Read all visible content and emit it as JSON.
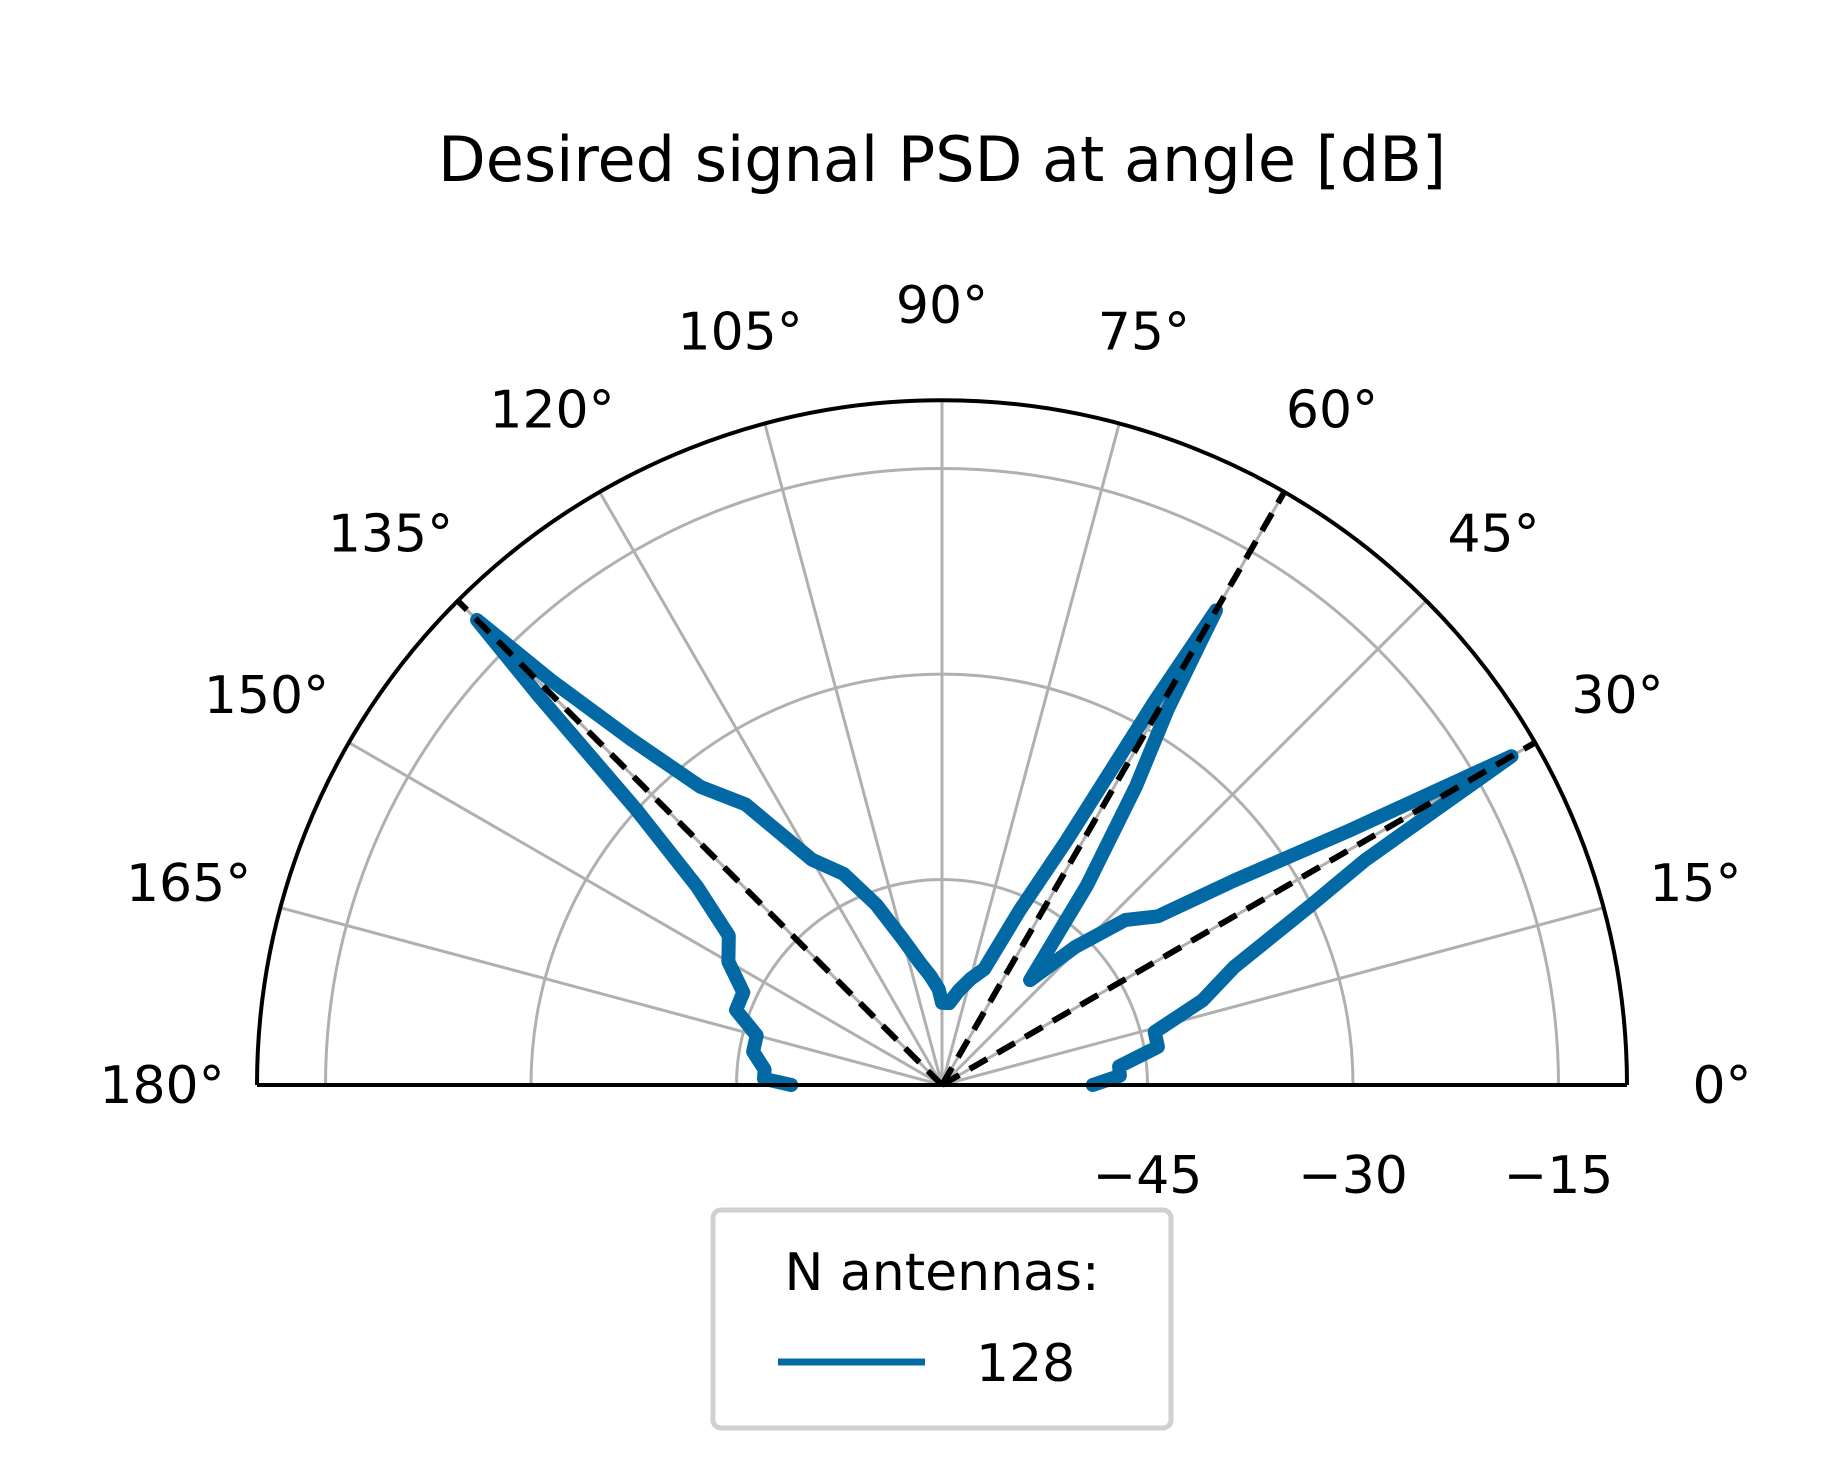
{
  "chart_data": {
    "type": "polar-line",
    "title": "Desired signal PSD at angle [dB]",
    "theta_range_deg": [
      0,
      180
    ],
    "theta_ticks": [
      "0°",
      "15°",
      "30°",
      "45°",
      "60°",
      "75°",
      "90°",
      "105°",
      "120°",
      "135°",
      "150°",
      "165°",
      "180°"
    ],
    "r_range": [
      -60,
      -10
    ],
    "r_ticks": [
      -45,
      -30,
      -15
    ],
    "r_tick_labels": [
      "−45",
      "−30",
      "−15"
    ],
    "grid": true,
    "reference_angles_deg": [
      30,
      60,
      135
    ],
    "legend": {
      "title": "N antennas:",
      "placement": "bottom-center",
      "entries": [
        "128"
      ]
    },
    "series": [
      {
        "name": "128",
        "color": "#0369a4",
        "theta_deg": [
          0,
          3,
          6,
          10,
          14,
          18,
          22,
          26,
          28,
          30,
          32,
          35,
          38,
          42,
          46,
          50,
          54,
          57,
          59,
          60,
          61,
          63,
          66,
          70,
          75,
          80,
          85,
          88,
          90,
          92,
          96,
          100,
          105,
          110,
          115,
          120,
          125,
          129,
          132,
          134,
          135,
          136,
          138,
          141,
          145,
          150,
          155,
          160,
          165,
          170,
          175,
          178,
          180
        ],
        "values_db": [
          -49,
          -47,
          -47,
          -44,
          -44,
          -40,
          -37,
          -30,
          -25,
          -12,
          -25,
          -34,
          -40,
          -42,
          -46,
          -50,
          -42,
          -34,
          -28,
          -20,
          -28,
          -40,
          -46,
          -51,
          -52,
          -53,
          -54,
          -54,
          -54,
          -53,
          -52,
          -51,
          -49,
          -46,
          -43,
          -41,
          -35,
          -32,
          -26,
          -19,
          -12,
          -19,
          -30,
          -37,
          -41,
          -42,
          -44,
          -44,
          -46,
          -46,
          -47,
          -47,
          -49
        ]
      }
    ],
    "_values_note": null
  }
}
